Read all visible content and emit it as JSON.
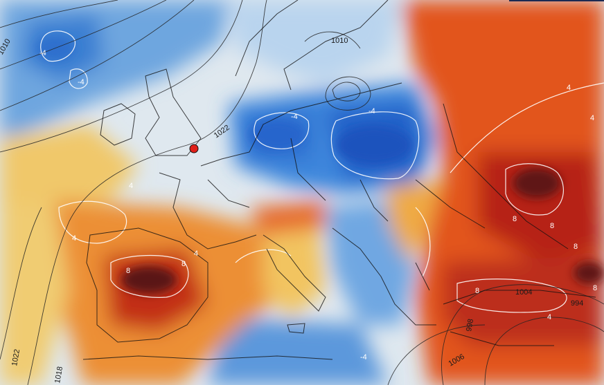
{
  "map": {
    "colors": {
      "cold_deep": "#1f5fc4",
      "cold": "#5b98dc",
      "cold_light": "#a9cbee",
      "neutral": "#e9eef2",
      "warm_light": "#f2d37a",
      "warm": "#ef9a3a",
      "hot": "#e0511c",
      "hot_deep": "#a31a14",
      "extreme": "#5a1216",
      "marker": "#e0201a"
    },
    "isobar_labels": [
      "1010",
      "1022",
      "1010",
      "1004",
      "994",
      "998",
      "1006",
      "1022",
      "1018"
    ],
    "anomaly_labels": [
      "-4",
      "-4",
      "-4",
      "-4",
      "-4",
      "4",
      "4",
      "4",
      "4",
      "4",
      "8",
      "8",
      "8",
      "8",
      "8",
      "8",
      "8",
      "4"
    ],
    "marker": {
      "label": "location-marker"
    }
  }
}
